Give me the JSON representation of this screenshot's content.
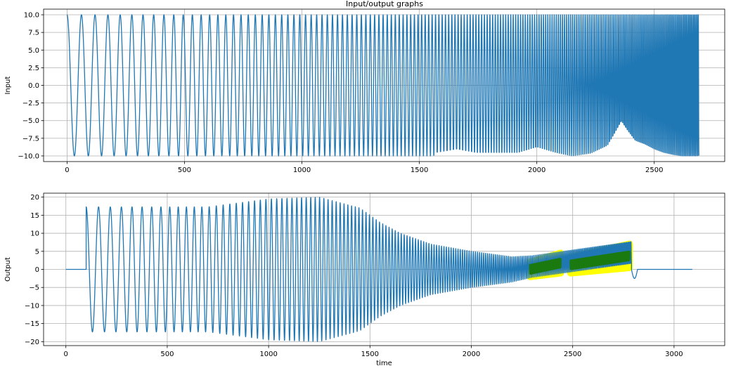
{
  "figure": {
    "title": "Input/output graphs",
    "line_color": "#1f77b4",
    "highlight_color": "#ffff00",
    "highlight_line_color": "#1a7a10"
  },
  "chart_data": [
    {
      "type": "line",
      "title": "Input/output graphs",
      "xlabel": "",
      "ylabel": "Input",
      "xlim": [
        -100,
        2800
      ],
      "ylim": [
        -10.8,
        10.8
      ],
      "xticks": [
        0,
        500,
        1000,
        1500,
        2000,
        2500
      ],
      "yticks": [
        -10.0,
        -7.5,
        -5.0,
        -2.5,
        0.0,
        2.5,
        5.0,
        7.5,
        10.0
      ],
      "ytick_labels": [
        "−10.0",
        "−7.5",
        "−5.0",
        "−2.5",
        "0.0",
        "2.5",
        "5.0",
        "7.5",
        "10.0"
      ],
      "grid": true,
      "series": [
        {
          "description_type": "chirp",
          "amplitude": 10,
          "x_start": 0,
          "x_end": 2690,
          "start_period": 63,
          "end_period": 5,
          "min_envelope_x": [
            1560,
            1570,
            1660,
            1740,
            1920,
            2000,
            2080,
            2150,
            2230,
            2300,
            2330,
            2360,
            2390,
            2420,
            2460,
            2500,
            2540,
            2580,
            2620,
            2660,
            2690
          ],
          "min_envelope_y": [
            -10,
            -9.5,
            -9.0,
            -9.5,
            -9.5,
            -8.7,
            -9.5,
            -10,
            -9.6,
            -8.5,
            -6.8,
            -5.0,
            -6.5,
            -7.8,
            -8.3,
            -9.0,
            -9.5,
            -9.8,
            -10,
            -10,
            -10
          ]
        }
      ]
    },
    {
      "type": "line",
      "title": "",
      "xlabel": "time",
      "ylabel": "Output",
      "xlim": [
        -110,
        3250
      ],
      "ylim": [
        -21.1,
        21.1
      ],
      "xticks": [
        0,
        500,
        1000,
        1500,
        2000,
        2500,
        3000
      ],
      "yticks": [
        -20,
        -15,
        -10,
        -5,
        0,
        5,
        10,
        15,
        20
      ],
      "ytick_labels": [
        "−20",
        "−15",
        "−10",
        "−5",
        "0",
        "5",
        "10",
        "15",
        "20"
      ],
      "grid": true,
      "series": [
        {
          "description_type": "response",
          "x_start": 0,
          "x_end": 3090,
          "onset_x": 100,
          "offset_x": 2790,
          "amplitude_x": [
            100,
            700,
            1000,
            1250,
            1450,
            1550,
            1650,
            1800,
            2000,
            2200,
            2300
          ],
          "amplitude_y": [
            17.3,
            17.3,
            19.5,
            20.0,
            17.0,
            13.0,
            10.0,
            7.0,
            5.0,
            3.5,
            3.0
          ]
        }
      ],
      "highlights": [
        {
          "x_start": 2290,
          "x_end": 2440,
          "y_low_start": -2.0,
          "y_low_end": -1.0,
          "y_high_start": 2.0,
          "y_high_end": 4.5
        },
        {
          "x_start": 2490,
          "x_end": 2780,
          "y_low_start": -1.0,
          "y_low_end": 0.5,
          "y_high_start": 3.5,
          "y_high_end": 7.0
        }
      ]
    }
  ]
}
